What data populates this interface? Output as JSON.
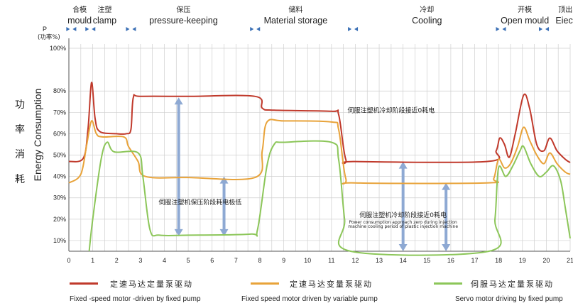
{
  "chart_data": {
    "type": "line",
    "ylabel_zh": [
      "功",
      "率",
      "消",
      "耗"
    ],
    "ylabel": "Energy Consumption",
    "yunit": [
      "P",
      "(功率%)"
    ],
    "xlim": [
      0,
      21
    ],
    "ylim": [
      5,
      102
    ],
    "xticks": [
      0,
      1,
      2,
      3,
      4,
      5,
      6,
      7,
      8,
      9,
      10,
      11,
      12,
      13,
      14,
      15,
      16,
      17,
      18,
      19,
      20,
      21
    ],
    "yticks": [
      {
        "v": 100,
        "label": "100%"
      },
      {
        "v": 80,
        "label": "80%"
      },
      {
        "v": 70,
        "label": "70%"
      },
      {
        "v": 60,
        "label": "60%"
      },
      {
        "v": 50,
        "label": "50%"
      },
      {
        "v": 40,
        "label": "40%"
      },
      {
        "v": 30,
        "label": "30%"
      },
      {
        "v": 20,
        "label": "20%"
      },
      {
        "v": 10,
        "label": "10%"
      }
    ],
    "phases": [
      {
        "zh": "合模",
        "en": "mould",
        "x": 0.45
      },
      {
        "zh": "注塑",
        "en": "clamp",
        "x": 1.5
      },
      {
        "zh": "保压",
        "en": "pressure-keeping",
        "x": 4.8
      },
      {
        "zh": "储料",
        "en": "Material storage",
        "x": 9.5
      },
      {
        "zh": "冷却",
        "en": "Cooling",
        "x": 15.0
      },
      {
        "zh": "开模",
        "en": "Open mould",
        "x": 19.1
      },
      {
        "zh": "顶出",
        "en": "Eiect",
        "x": 20.8
      }
    ],
    "phase_markers": [
      0.1,
      0.9,
      2.6,
      7.8,
      11.9,
      18.1,
      19.9
    ],
    "series": [
      {
        "name": "定速马达定量泵驱动",
        "name_en": "Fixed -speed motor -driven by fixed pump",
        "color": "#c0392b",
        "points": [
          [
            0,
            47
          ],
          [
            0.6,
            48.5
          ],
          [
            0.8,
            62
          ],
          [
            0.95,
            84
          ],
          [
            1.1,
            67
          ],
          [
            1.3,
            61
          ],
          [
            2.0,
            60
          ],
          [
            2.4,
            60
          ],
          [
            2.6,
            62
          ],
          [
            2.7,
            77
          ],
          [
            3.0,
            77.5
          ],
          [
            5,
            77.5
          ],
          [
            7.8,
            77.5
          ],
          [
            8.1,
            72
          ],
          [
            8.6,
            71
          ],
          [
            11,
            70.5
          ],
          [
            11.3,
            69
          ],
          [
            11.6,
            48
          ],
          [
            12,
            47
          ],
          [
            17.5,
            47
          ],
          [
            17.9,
            52
          ],
          [
            18.05,
            58
          ],
          [
            18.25,
            55
          ],
          [
            18.45,
            49
          ],
          [
            18.7,
            60
          ],
          [
            19.05,
            78
          ],
          [
            19.3,
            72
          ],
          [
            19.6,
            55
          ],
          [
            19.9,
            52
          ],
          [
            20.15,
            58
          ],
          [
            20.45,
            52
          ],
          [
            20.8,
            48
          ],
          [
            21,
            46.5
          ]
        ]
      },
      {
        "name": "定速马达变量泵驱动",
        "name_en": "Fixed speed motor driven by variable pump",
        "color": "#e8a33a",
        "points": [
          [
            0,
            37
          ],
          [
            0.5,
            41
          ],
          [
            0.75,
            55
          ],
          [
            0.95,
            66
          ],
          [
            1.15,
            60
          ],
          [
            1.4,
            58.5
          ],
          [
            2.3,
            58.5
          ],
          [
            2.5,
            54
          ],
          [
            2.9,
            47
          ],
          [
            3.2,
            40
          ],
          [
            5,
            39.5
          ],
          [
            7.8,
            39.5
          ],
          [
            8.1,
            52
          ],
          [
            8.3,
            65.5
          ],
          [
            9,
            66
          ],
          [
            11,
            65.5
          ],
          [
            11.3,
            62
          ],
          [
            11.6,
            39
          ],
          [
            12,
            37
          ],
          [
            17.5,
            37
          ],
          [
            17.8,
            39
          ],
          [
            18.0,
            48
          ],
          [
            18.25,
            44
          ],
          [
            18.5,
            46
          ],
          [
            18.8,
            54
          ],
          [
            19.05,
            63
          ],
          [
            19.3,
            57
          ],
          [
            19.6,
            50
          ],
          [
            19.9,
            46
          ],
          [
            20.15,
            51
          ],
          [
            20.45,
            46
          ],
          [
            20.8,
            42
          ],
          [
            21,
            41
          ]
        ]
      },
      {
        "name": "伺服马达定量泵驱动",
        "name_en": "Servo motor driving by fixed pump",
        "color": "#8cc659",
        "points": [
          [
            0.85,
            5
          ],
          [
            1.0,
            20
          ],
          [
            1.35,
            48
          ],
          [
            1.6,
            56
          ],
          [
            1.9,
            51.5
          ],
          [
            2.9,
            51
          ],
          [
            3.1,
            40
          ],
          [
            3.4,
            15
          ],
          [
            3.8,
            12.5
          ],
          [
            5,
            12.5
          ],
          [
            7.6,
            13
          ],
          [
            7.9,
            15
          ],
          [
            8.3,
            45
          ],
          [
            8.6,
            55
          ],
          [
            9,
            56
          ],
          [
            11,
            56
          ],
          [
            11.3,
            48
          ],
          [
            11.55,
            20
          ],
          [
            11.8,
            5
          ],
          [
            17.6,
            5
          ],
          [
            17.85,
            20
          ],
          [
            18.0,
            44
          ],
          [
            18.3,
            40
          ],
          [
            18.6,
            45
          ],
          [
            18.9,
            52
          ],
          [
            19.05,
            54
          ],
          [
            19.35,
            46
          ],
          [
            19.7,
            40
          ],
          [
            20.0,
            42
          ],
          [
            20.3,
            45
          ],
          [
            20.6,
            38
          ],
          [
            20.8,
            25
          ],
          [
            21,
            11
          ]
        ]
      }
    ],
    "annotations": [
      {
        "text": "伺服注塑机冷却阶段接近0耗电",
        "x": 13.5,
        "y": 70
      },
      {
        "text": "伺服注塑机保压阶段耗电极低",
        "x": 5.5,
        "y": 27
      },
      {
        "text": "伺服注塑机冷却阶段接近0耗电",
        "x": 14.0,
        "y": 21
      },
      {
        "text": "Power consumption approach zero during injection",
        "x": 14.0,
        "y": 18
      },
      {
        "text": "machine cooling period of plastic injection machine",
        "x": 14.0,
        "y": 16
      }
    ],
    "arrows": [
      {
        "x": 4.6,
        "y0": 12,
        "y1": 77
      },
      {
        "x": 6.5,
        "y0": 12,
        "y1": 40
      },
      {
        "x": 14.0,
        "y0": 5,
        "y1": 47
      },
      {
        "x": 15.8,
        "y0": 5,
        "y1": 37
      }
    ]
  }
}
